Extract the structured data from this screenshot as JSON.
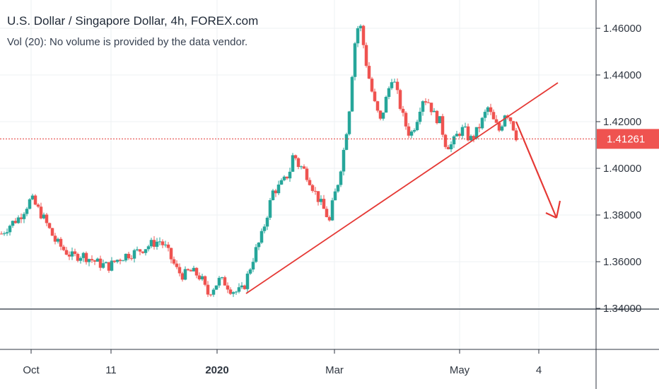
{
  "colors": {
    "up": "#26a69a",
    "down": "#ef5350",
    "grid": "#eef1f3",
    "axis": "#2f3640",
    "annotation": "#e53935",
    "price_label_bg": "#ef5350"
  },
  "chart_data": {
    "type": "candlestick",
    "title": "U.S. Dollar / Singapore Dollar, 4h, FOREX.com",
    "subtitle": "Vol (20): No volume is provided by the data vendor.",
    "y_axis": {
      "position": "right",
      "range": [
        1.33,
        1.47
      ],
      "ticks": [
        "1.46000",
        "1.44000",
        "1.42000",
        "1.40000",
        "1.38000",
        "1.36000",
        "1.34000"
      ],
      "tick_values": [
        1.46,
        1.44,
        1.42,
        1.4,
        1.38,
        1.36,
        1.34
      ]
    },
    "x_axis": {
      "ticks": [
        {
          "label": "Oct",
          "bold": false
        },
        {
          "label": "11",
          "bold": false
        },
        {
          "label": "2020",
          "bold": true
        },
        {
          "label": "Mar",
          "bold": false
        },
        {
          "label": "May",
          "bold": false
        },
        {
          "label": "4",
          "bold": false
        }
      ]
    },
    "grid": true,
    "current_price": {
      "value": 1.41261,
      "label": "1.41261"
    },
    "price_path": [
      [
        0,
        1.372
      ],
      [
        3,
        1.376
      ],
      [
        6,
        1.379
      ],
      [
        8,
        1.383
      ],
      [
        10,
        1.387
      ],
      [
        12,
        1.383
      ],
      [
        14,
        1.379
      ],
      [
        16,
        1.374
      ],
      [
        18,
        1.369
      ],
      [
        21,
        1.365
      ],
      [
        24,
        1.362
      ],
      [
        27,
        1.363
      ],
      [
        30,
        1.361
      ],
      [
        33,
        1.359
      ],
      [
        36,
        1.358
      ],
      [
        39,
        1.361
      ],
      [
        42,
        1.363
      ],
      [
        45,
        1.364
      ],
      [
        48,
        1.366
      ],
      [
        51,
        1.368
      ],
      [
        53,
        1.369
      ],
      [
        55,
        1.366
      ],
      [
        57,
        1.361
      ],
      [
        59,
        1.356
      ],
      [
        61,
        1.354
      ],
      [
        63,
        1.356
      ],
      [
        65,
        1.355
      ],
      [
        67,
        1.353
      ],
      [
        69,
        1.346
      ],
      [
        71,
        1.349
      ],
      [
        73,
        1.352
      ],
      [
        75,
        1.351
      ],
      [
        77,
        1.348
      ],
      [
        79,
        1.347
      ],
      [
        81,
        1.348
      ],
      [
        83,
        1.356
      ],
      [
        85,
        1.364
      ],
      [
        87,
        1.37
      ],
      [
        89,
        1.38
      ],
      [
        91,
        1.39
      ],
      [
        93,
        1.392
      ],
      [
        95,
        1.395
      ],
      [
        97,
        1.4
      ],
      [
        98,
        1.408
      ],
      [
        99,
        1.402
      ],
      [
        101,
        1.4
      ],
      [
        103,
        1.396
      ],
      [
        105,
        1.39
      ],
      [
        107,
        1.385
      ],
      [
        109,
        1.38
      ],
      [
        110,
        1.377
      ],
      [
        111,
        1.385
      ],
      [
        113,
        1.395
      ],
      [
        115,
        1.41
      ],
      [
        117,
        1.43
      ],
      [
        118,
        1.45
      ],
      [
        119,
        1.458
      ],
      [
        120,
        1.463
      ],
      [
        121,
        1.456
      ],
      [
        122,
        1.447
      ],
      [
        123,
        1.44
      ],
      [
        125,
        1.428
      ],
      [
        127,
        1.42
      ],
      [
        129,
        1.43
      ],
      [
        131,
        1.44
      ],
      [
        133,
        1.43
      ],
      [
        135,
        1.42
      ],
      [
        137,
        1.414
      ],
      [
        139,
        1.42
      ],
      [
        141,
        1.43
      ],
      [
        143,
        1.429
      ],
      [
        145,
        1.423
      ],
      [
        147,
        1.42
      ],
      [
        149,
        1.41
      ],
      [
        151,
        1.41
      ],
      [
        153,
        1.415
      ],
      [
        155,
        1.417
      ],
      [
        157,
        1.412
      ],
      [
        159,
        1.415
      ],
      [
        161,
        1.42
      ],
      [
        163,
        1.426
      ],
      [
        165,
        1.42
      ],
      [
        167,
        1.416
      ],
      [
        169,
        1.425
      ],
      [
        171,
        1.42
      ],
      [
        172,
        1.416
      ],
      [
        173,
        1.412
      ]
    ]
  }
}
